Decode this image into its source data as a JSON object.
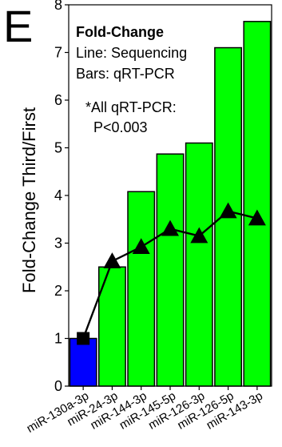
{
  "panel_letter": "E",
  "chart_data": {
    "type": "bar",
    "ylabel": "Fold-Change Third/First",
    "xlabel": "",
    "ylim": [
      0,
      8
    ],
    "yticks": [
      0,
      1,
      2,
      3,
      4,
      5,
      6,
      7,
      8
    ],
    "grid": false,
    "categories": [
      "miR-130a-3p",
      "miR-24-3p",
      "miR-144-3p",
      "miR-145-5p",
      "miR-126-3p",
      "miR-126-5p",
      "miR-143-3p"
    ],
    "series": [
      {
        "name": "qRT-PCR",
        "kind": "bar",
        "values": [
          1.0,
          2.5,
          4.08,
          4.87,
          5.1,
          7.1,
          7.65
        ],
        "colors": [
          "#0000ff",
          "#00ff00",
          "#00ff00",
          "#00ff00",
          "#00ff00",
          "#00ff00",
          "#00ff00"
        ]
      },
      {
        "name": "Sequencing",
        "kind": "line",
        "values": [
          1.0,
          2.62,
          2.92,
          3.3,
          3.15,
          3.67,
          3.52
        ],
        "markers": [
          "square",
          "triangle",
          "triangle",
          "triangle",
          "triangle",
          "triangle",
          "triangle"
        ],
        "color": "#000000"
      }
    ],
    "annotations": {
      "title": "Fold-Change",
      "line_note": "Line: Sequencing",
      "bar_note": "Bars: qRT-PCR",
      "sig_line1": "*All qRT-PCR:",
      "sig_line2": "P<0.003"
    }
  }
}
